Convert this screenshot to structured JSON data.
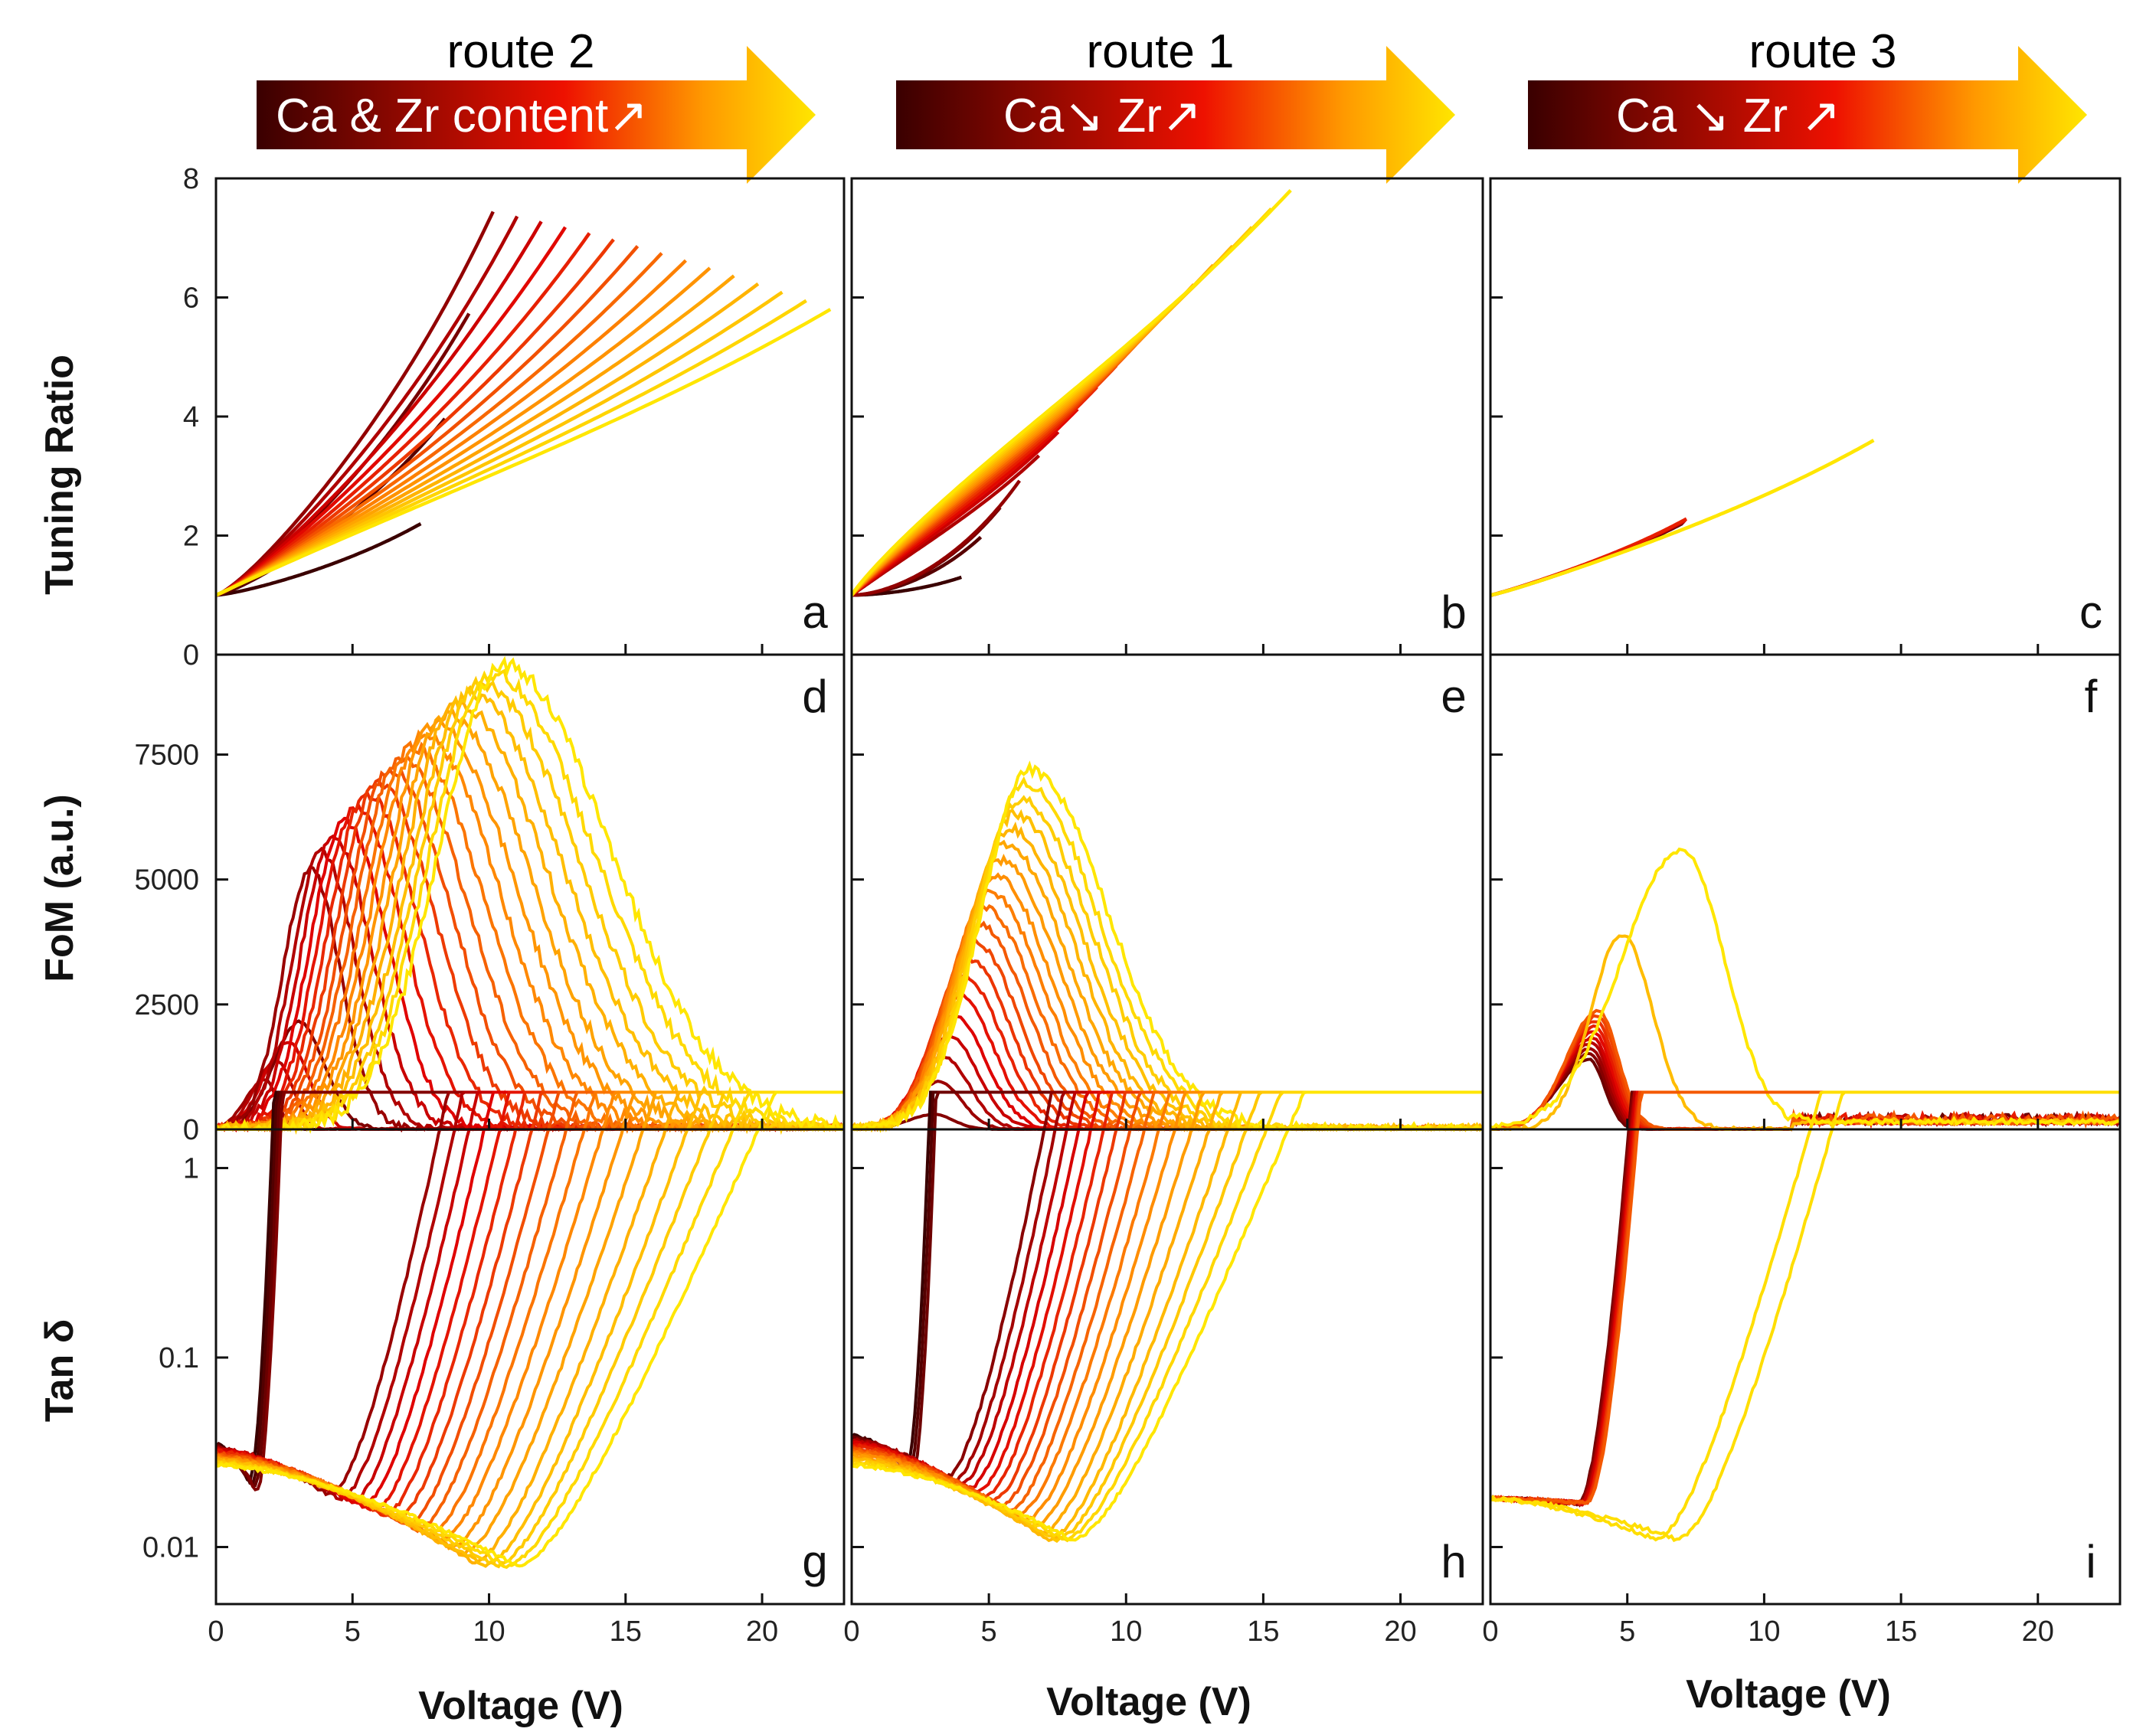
{
  "routes": [
    {
      "title": "route 2",
      "arrow_label": "Ca & Zr content↗"
    },
    {
      "title": "route 1",
      "arrow_label": "Ca↘     Zr↗"
    },
    {
      "title": "route 3",
      "arrow_label": "Ca ↘  Zr ↗"
    }
  ],
  "colors": {
    "dark": "#3a0000",
    "red": "#e00000",
    "orange": "#ff8800",
    "yellow": "#ffe600"
  },
  "chart_data": [
    {
      "type": "line",
      "panel": "a",
      "route": "route 2",
      "ylabel": "Tuning Ratio",
      "xlabel": "",
      "ylim": [
        0,
        8
      ],
      "xlim": [
        0,
        23
      ],
      "yticks": [
        "0",
        "2",
        "4",
        "6",
        "8"
      ],
      "xticks": [],
      "series_summary": {
        "count": 18,
        "start_y": 1.0,
        "end_x_range": [
          7,
          22.5
        ],
        "end_y_range": [
          2.1,
          7.6
        ]
      }
    },
    {
      "type": "line",
      "panel": "b",
      "route": "route 1",
      "ylabel": "",
      "xlabel": "",
      "ylim": [
        0,
        8
      ],
      "xlim": [
        0,
        23
      ],
      "yticks": [],
      "xticks": [],
      "series_summary": {
        "count": 18,
        "start_y": 1.0,
        "end_x_range": [
          4,
          16
        ],
        "end_y_range": [
          1.3,
          7.8
        ]
      }
    },
    {
      "type": "line",
      "panel": "c",
      "route": "route 3",
      "ylabel": "",
      "xlabel": "",
      "ylim": [
        0,
        8
      ],
      "xlim": [
        0,
        23
      ],
      "yticks": [],
      "xticks": [],
      "series_summary": {
        "count": 12,
        "start_y": 1.0,
        "end_x_range": [
          7,
          14
        ],
        "end_y_range": [
          2.2,
          3.6
        ]
      }
    },
    {
      "type": "line",
      "panel": "d",
      "route": "route 2",
      "ylabel": "FoM (a.u.)",
      "xlabel": "",
      "ylim": [
        0,
        9500
      ],
      "xlim": [
        0,
        23
      ],
      "yticks": [
        "0",
        "2500",
        "5000",
        "7500"
      ],
      "xticks": [],
      "series_summary": {
        "count": 22,
        "peak_x_range": [
          1.8,
          10.5
        ],
        "peak_y_range": [
          1000,
          9300
        ]
      }
    },
    {
      "type": "line",
      "panel": "e",
      "route": "route 1",
      "ylabel": "",
      "xlabel": "",
      "ylim": [
        0,
        9500
      ],
      "xlim": [
        0,
        23
      ],
      "yticks": [],
      "xticks": [],
      "series_summary": {
        "count": 20,
        "peak_x_range": [
          3,
          6.5
        ],
        "peak_y_range": [
          300,
          7200
        ]
      }
    },
    {
      "type": "line",
      "panel": "f",
      "route": "route 3",
      "ylabel": "",
      "xlabel": "",
      "ylim": [
        0,
        9500
      ],
      "xlim": [
        0,
        23
      ],
      "yticks": [],
      "xticks": [],
      "series_summary": {
        "count": 12,
        "peak_x_range": [
          3.5,
          7
        ],
        "peak_y_range": [
          1400,
          5600
        ]
      }
    },
    {
      "type": "line",
      "panel": "g",
      "route": "route 2",
      "ylabel": "Tan δ",
      "xlabel": "Voltage (V)",
      "yscale": "log",
      "ylim": [
        0.005,
        1.6
      ],
      "xlim": [
        0,
        23
      ],
      "yticks": [
        "0.01",
        "0.1",
        "1"
      ],
      "xticks": [
        "0",
        "5",
        "10",
        "15",
        "20"
      ],
      "series_summary": {
        "count": 22,
        "min_x_range": [
          1,
          11
        ],
        "min_y_range": [
          0.008,
          0.025
        ]
      }
    },
    {
      "type": "line",
      "panel": "h",
      "route": "route 1",
      "ylabel": "",
      "xlabel": "Voltage (V)",
      "yscale": "log",
      "ylim": [
        0.005,
        1.6
      ],
      "xlim": [
        0,
        23
      ],
      "yticks": [],
      "xticks": [
        "0",
        "5",
        "10",
        "15",
        "20"
      ],
      "series_summary": {
        "count": 20,
        "min_x_range": [
          2,
          8
        ],
        "min_y_range": [
          0.011,
          0.027
        ]
      }
    },
    {
      "type": "line",
      "panel": "i",
      "route": "route 3",
      "ylabel": "",
      "xlabel": "Voltage (V)",
      "yscale": "log",
      "ylim": [
        0.005,
        1.6
      ],
      "xlim": [
        0,
        23
      ],
      "yticks": [],
      "xticks": [
        "0",
        "5",
        "10",
        "15",
        "20"
      ],
      "series_summary": {
        "count": 12,
        "min_x_range": [
          3,
          7
        ],
        "min_y_range": [
          0.01,
          0.017
        ]
      }
    }
  ]
}
